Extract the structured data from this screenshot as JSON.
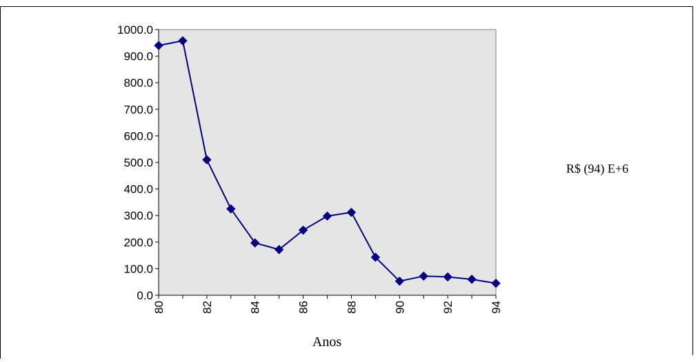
{
  "chart_data": {
    "type": "line",
    "title": "",
    "xlabel": "Anos",
    "ylabel": "R$ (94) E+6",
    "x": [
      80,
      81,
      82,
      83,
      84,
      85,
      86,
      87,
      88,
      89,
      90,
      91,
      92,
      93,
      94
    ],
    "series": [
      {
        "values": [
          940,
          958,
          510,
          325,
          197,
          172,
          245,
          298,
          312,
          143,
          53,
          72,
          69,
          60,
          45
        ]
      }
    ],
    "xlim": [
      80,
      94
    ],
    "ylim": [
      0,
      1000
    ],
    "x_ticks": [
      "80",
      "82",
      "84",
      "86",
      "88",
      "90",
      "92",
      "94"
    ],
    "y_ticks": [
      "0.0",
      "100.0",
      "200.0",
      "300.0",
      "400.0",
      "500.0",
      "600.0",
      "700.0",
      "800.0",
      "900.0",
      "1000.0"
    ],
    "grid": false,
    "legend": "none",
    "colors": {
      "line": "#000080",
      "marker": "#000080",
      "plot_bg": "#e5e5e5",
      "axis": "#000000"
    },
    "marker": "diamond"
  }
}
